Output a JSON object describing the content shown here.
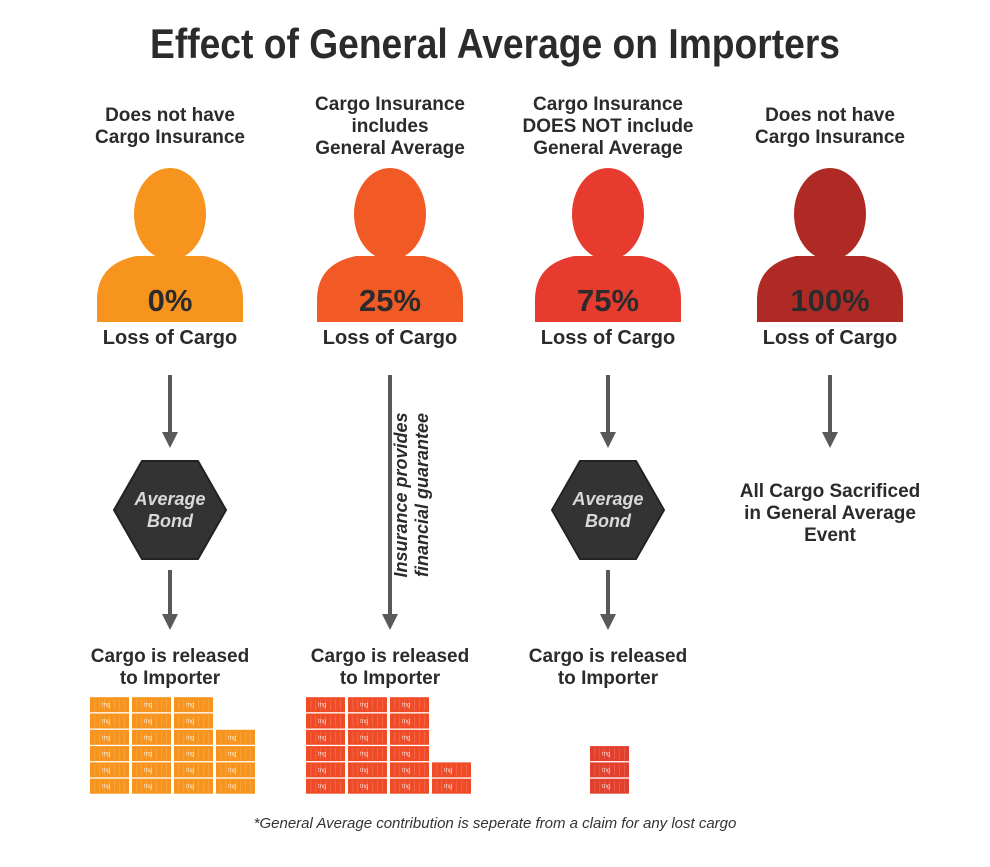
{
  "title": "Effect of General Average on Importers",
  "columns": [
    {
      "heading": [
        "Does not have",
        "Cargo Insurance"
      ],
      "percent": "0%",
      "loss_label": "Loss of Cargo",
      "color": "#f7941d",
      "bond": [
        "Average",
        "Bond"
      ],
      "result": [
        "Cargo is released",
        "to Importer"
      ],
      "container_color": "#f7941d",
      "containers": [
        6,
        6,
        6,
        4
      ]
    },
    {
      "heading": [
        "Cargo Insurance",
        "includes",
        "General Average"
      ],
      "percent": "25%",
      "loss_label": "Loss of Cargo",
      "color": "#f15a24",
      "side_note": [
        "Insurance provides",
        "financial guarantee"
      ],
      "result": [
        "Cargo is released",
        "to Importer"
      ],
      "container_color": "#ef4b26",
      "containers": [
        6,
        6,
        6,
        2
      ]
    },
    {
      "heading": [
        "Cargo Insurance",
        "DOES NOT include",
        "General Average"
      ],
      "percent": "75%",
      "loss_label": "Loss of Cargo",
      "color": "#e63b2e",
      "bond": [
        "Average",
        "Bond"
      ],
      "result": [
        "Cargo is released",
        "to Importer"
      ],
      "container_color": "#e2402c",
      "containers": [
        3
      ]
    },
    {
      "heading": [
        "Does not have",
        "Cargo Insurance"
      ],
      "percent": "100%",
      "loss_label": "Loss of Cargo",
      "color": "#b02a25",
      "result": [
        "All Cargo Sacrificed",
        "in General Average",
        "Event"
      ]
    }
  ],
  "container_logo": "tng",
  "footnote": "*General Average contribution is seperate from a claim for any lost cargo"
}
